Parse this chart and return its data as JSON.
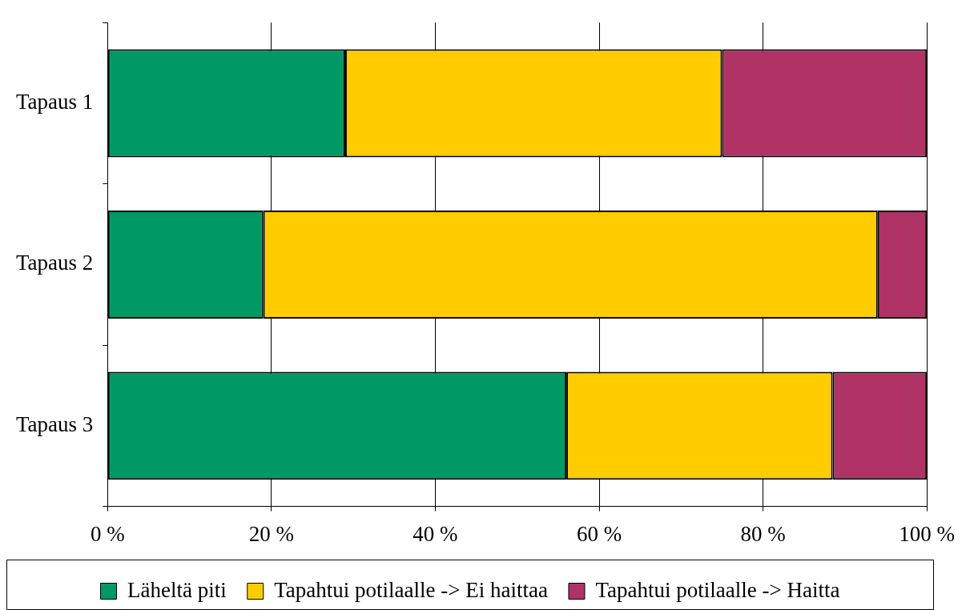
{
  "chart_data": {
    "type": "bar",
    "orientation": "horizontal",
    "stacked": true,
    "categories": [
      "Tapaus 1",
      "Tapaus 2",
      "Tapaus 3"
    ],
    "series": [
      {
        "name": "Läheltä piti",
        "color": "#009966",
        "values": [
          29,
          19,
          56
        ]
      },
      {
        "name": "Tapahtui potilaalle -> Ei haittaa",
        "color": "#ffcc00",
        "values": [
          46,
          75,
          32.5
        ]
      },
      {
        "name": "Tapahtui potilaalle -> Haitta",
        "color": "#b03366",
        "values": [
          25,
          6,
          11.5
        ]
      }
    ],
    "xlim": [
      0,
      100
    ],
    "xticks": [
      {
        "value": 0,
        "label": "0 %"
      },
      {
        "value": 20,
        "label": "20 %"
      },
      {
        "value": 40,
        "label": "40 %"
      },
      {
        "value": 60,
        "label": "60 %"
      },
      {
        "value": 80,
        "label": "80 %"
      },
      {
        "value": 100,
        "label": "100 %"
      }
    ],
    "grid": "x",
    "legend": "bottom"
  }
}
